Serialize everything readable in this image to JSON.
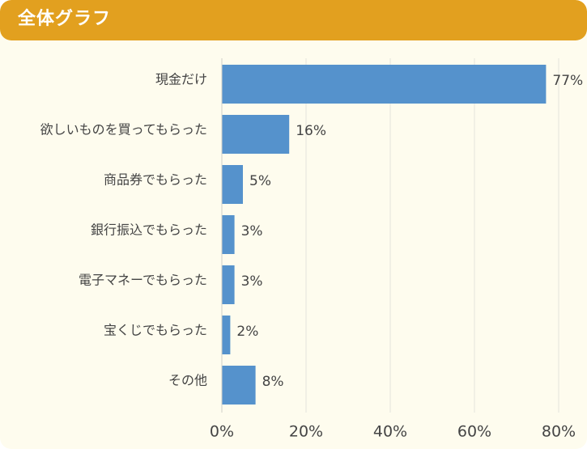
{
  "header": {
    "title": "全体グラフ"
  },
  "colors": {
    "header": "#e2a01f",
    "background": "#fefcee",
    "bar": "#5592cc",
    "grid": "#e4e4dc",
    "text": "#444444"
  },
  "chart_data": {
    "type": "bar",
    "orientation": "horizontal",
    "title": "全体グラフ",
    "categories": [
      "現金だけ",
      "欲しいものを買ってもらった",
      "商品券でもらった",
      "銀行振込でもらった",
      "電子マネーでもらった",
      "宝くじでもらった",
      "その他"
    ],
    "values": [
      77,
      16,
      5,
      3,
      3,
      2,
      8
    ],
    "value_labels": [
      "77%",
      "16%",
      "5%",
      "3%",
      "3%",
      "2%",
      "8%"
    ],
    "xlim": [
      0,
      80
    ],
    "x_ticks": [
      0,
      20,
      40,
      60,
      80
    ],
    "x_tick_labels": [
      "0%",
      "20%",
      "40%",
      "60%",
      "80%"
    ],
    "xlabel": "",
    "ylabel": "",
    "grid": true,
    "legend": "none"
  }
}
